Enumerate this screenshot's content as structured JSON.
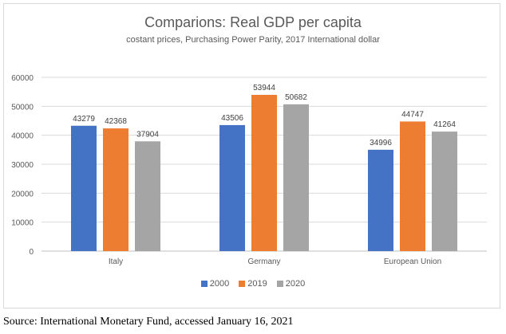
{
  "chart_data": {
    "type": "bar",
    "title": "Comparions: Real GDP per capita",
    "subtitle": "costant prices, Purchasing Power Parity, 2017 International dollar",
    "categories": [
      "Italy",
      "Germany",
      "European Union"
    ],
    "series": [
      {
        "name": "2000",
        "color": "#4472c4",
        "values": [
          43279,
          43506,
          34996
        ]
      },
      {
        "name": "2019",
        "color": "#ed7d31",
        "values": [
          42368,
          53944,
          44747
        ]
      },
      {
        "name": "2020",
        "color": "#a5a5a5",
        "values": [
          37904,
          50682,
          41264
        ]
      }
    ],
    "ylim": [
      0,
      60000
    ],
    "yticks": [
      "0",
      "10000",
      "20000",
      "30000",
      "40000",
      "50000",
      "60000"
    ],
    "grid": true,
    "legend_position": "bottom"
  },
  "source": "Source: International Monetary Fund, accessed January 16, 2021"
}
